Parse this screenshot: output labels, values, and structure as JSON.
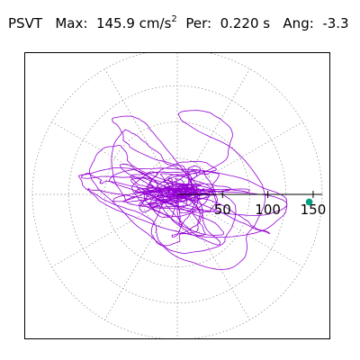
{
  "title": {
    "label": "PSVT",
    "max_label": "Max:",
    "max_value": "145.9",
    "max_unit": "cm/s",
    "max_unit_exp": "2",
    "per_label": "Per:",
    "per_value": "0.220 s",
    "ang_label": "Ang:",
    "ang_value": "-3.3"
  },
  "chart_data": {
    "type": "polar-trace",
    "max_radius": 160,
    "rings": [
      40,
      80,
      120,
      160
    ],
    "radial_tick_labels": [
      "50",
      "100",
      "150"
    ],
    "radial_tick_values": [
      50,
      100,
      150
    ],
    "spoke_step_deg": 30,
    "trace_color": "#9400d3",
    "marker_color": "#00a080",
    "marker": {
      "magnitude": 145.9,
      "angle_deg": -3.3
    },
    "grid": true
  }
}
